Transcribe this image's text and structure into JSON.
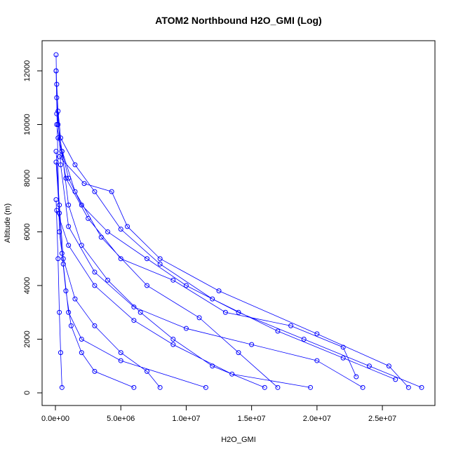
{
  "chart_data": {
    "type": "scatter",
    "title": "ATOM2 Northbound H2O_GMI (Log)",
    "x_label": "H2O_GMI",
    "y_label": "Altitude (m)",
    "xlim": [
      -1020000,
      29020000
    ],
    "ylim": [
      -471,
      13124
    ],
    "xticks": [
      {
        "value": 0,
        "label": "0.0e+00"
      },
      {
        "value": 5000000,
        "label": "5.0e+06"
      },
      {
        "value": 10000000,
        "label": "1.0e+07"
      },
      {
        "value": 15000000,
        "label": "1.5e+07"
      },
      {
        "value": 20000000,
        "label": "2.0e+07"
      },
      {
        "value": 25000000,
        "label": "2.5e+07"
      }
    ],
    "yticks": [
      0,
      2000,
      4000,
      6000,
      8000,
      10000,
      12000
    ],
    "series": [
      {
        "color": "#0000ff",
        "x": [
          50000.0,
          100000.0,
          200000.0,
          500000.0,
          1000000.0,
          2000000.0,
          4000000.0,
          7000000.0,
          10000000.0,
          14000000.0,
          19000000.0,
          24000000.0,
          28000000.0,
          null,
          50000.0,
          200000.0,
          400000.0,
          1500000.0,
          3000000.0,
          5000000.0,
          8000000.0,
          12000000.0,
          17000000.0,
          22000000.0,
          26000000.0,
          null,
          100000.0,
          500000.0,
          1000000.0,
          2000000.0,
          4000000.0,
          6500000.0,
          9000000.0,
          12000000.0,
          16000000.0,
          null,
          50000.0,
          300000.0,
          600000.0,
          1500000.0,
          3000000.0,
          5000000.0,
          7000000.0,
          8000000.0,
          null,
          100000.0,
          400000.0,
          1000000.0,
          3000000.0,
          6000000.0,
          10000000.0,
          15000000.0,
          20000000.0,
          23500000.0,
          null,
          50000.0,
          300000.0,
          500000.0,
          800000.0,
          1200000.0,
          2000000.0,
          3000000.0,
          6000000.0,
          null,
          100000.0,
          800000.0,
          2500000.0,
          5000000.0,
          9000000.0,
          13000000.0,
          18000000.0,
          22000000.0,
          23000000.0,
          null,
          50000.0,
          200000.0,
          300000.0,
          400000.0,
          500000.0,
          null,
          200000.0,
          1500000.0,
          3500000.0,
          7000000.0,
          11000000.0,
          14000000.0,
          17000000.0,
          null,
          100000.0,
          1000000.0,
          3000000.0,
          6000000.0,
          9000000.0,
          13500000.0,
          19500000.0,
          null,
          50000.0,
          300000.0,
          600000.0,
          1000000.0,
          2000000.0,
          5000000.0,
          11500000.0,
          null,
          300000.0,
          2200000.0,
          4300000.0,
          5500000.0,
          8000000.0,
          12500000.0,
          20000000.0,
          25500000.0,
          27000000.0
        ],
        "values": [
          12600,
          11000,
          10000,
          9000,
          8000,
          7000,
          6000,
          5000,
          4000,
          3000,
          2000,
          1000,
          200,
          null,
          12000,
          10500,
          9500,
          8500,
          7500,
          6100,
          4800,
          3500,
          2300,
          1300,
          500,
          null,
          10400,
          9000,
          7000,
          5500,
          4200,
          3000,
          2000,
          1000,
          200,
          null,
          9000,
          7000,
          5000,
          3500,
          2500,
          1500,
          800,
          200,
          null,
          11500,
          8500,
          6200,
          4500,
          3200,
          2400,
          1800,
          1200,
          200,
          null,
          8600,
          6700,
          5200,
          3800,
          2500,
          1500,
          800,
          200,
          null,
          10000,
          8000,
          6500,
          5000,
          4200,
          3000,
          2500,
          1700,
          600,
          null,
          7200,
          5000,
          3000,
          1500,
          200,
          null,
          9500,
          7500,
          5800,
          4000,
          2800,
          1500,
          200,
          null,
          6800,
          5500,
          4000,
          2700,
          1800,
          700,
          200,
          null,
          12000,
          6000,
          4800,
          3000,
          2000,
          1200,
          200,
          null,
          8800,
          7800,
          7500,
          6200,
          5000,
          3800,
          2200,
          1000,
          200
        ]
      }
    ]
  }
}
